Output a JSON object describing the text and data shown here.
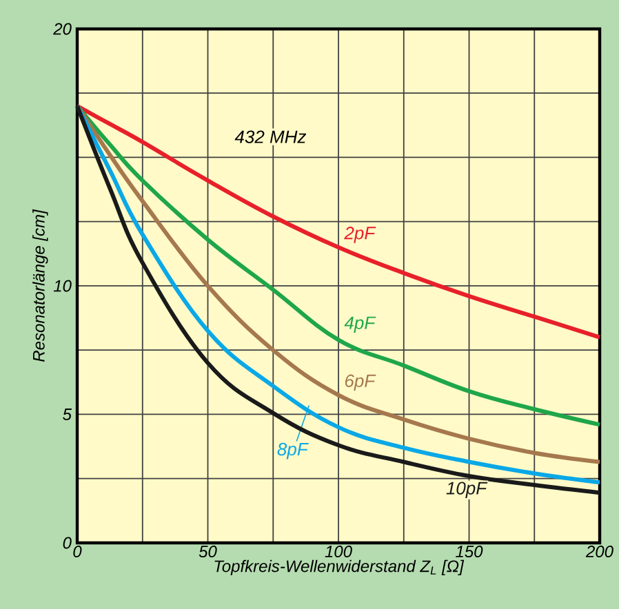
{
  "chart_data": {
    "type": "line",
    "xlabel": "Topfkreis-Wellenwiderstand Z$_{L}$ [Ω]",
    "ylabel": "Resonatorlänge [cm]",
    "annotations": [
      "432 MHz"
    ],
    "x": [
      0,
      12.5,
      25,
      50,
      75,
      100,
      125,
      150,
      175,
      200
    ],
    "series": [
      {
        "name": "2pF",
        "color": "#e8202a",
        "values": [
          17.0,
          16.3,
          15.6,
          14.1,
          12.7,
          11.5,
          10.5,
          9.6,
          8.8,
          8.0
        ]
      },
      {
        "name": "4pF",
        "color": "#1fa64a",
        "values": [
          17.0,
          15.5,
          14.1,
          11.8,
          9.85,
          7.9,
          6.9,
          5.9,
          5.2,
          4.6
        ]
      },
      {
        "name": "6pF",
        "color": "#a6784e",
        "values": [
          17.0,
          15.1,
          13.3,
          10.0,
          7.5,
          5.75,
          4.8,
          4.05,
          3.5,
          3.15
        ]
      },
      {
        "name": "8pF",
        "color": "#0aa8e6",
        "values": [
          17.0,
          14.5,
          12.0,
          8.25,
          6.1,
          4.5,
          3.7,
          3.15,
          2.7,
          2.35
        ]
      },
      {
        "name": "10pF",
        "color": "#1a1a1a",
        "values": [
          17.0,
          13.8,
          10.9,
          7.0,
          5.05,
          3.8,
          3.15,
          2.6,
          2.25,
          1.95
        ]
      }
    ],
    "xlim": [
      0,
      200
    ],
    "ylim": [
      0,
      20
    ],
    "xticks": [
      0,
      {
        "value": 25,
        "label": null
      },
      50,
      {
        "value": 75,
        "label": null
      },
      100,
      {
        "value": 125,
        "label": null
      },
      150,
      {
        "value": 175,
        "label": null
      },
      200
    ],
    "yticks": [
      0,
      {
        "value": 2.5,
        "label": null
      },
      5,
      {
        "value": 7.5,
        "label": null
      },
      10,
      {
        "value": 12.5,
        "label": null
      },
      {
        "value": 15,
        "label": null
      },
      {
        "value": 17.5,
        "label": null
      },
      20
    ],
    "grid": true,
    "line_style": "solid",
    "marker": "none"
  }
}
